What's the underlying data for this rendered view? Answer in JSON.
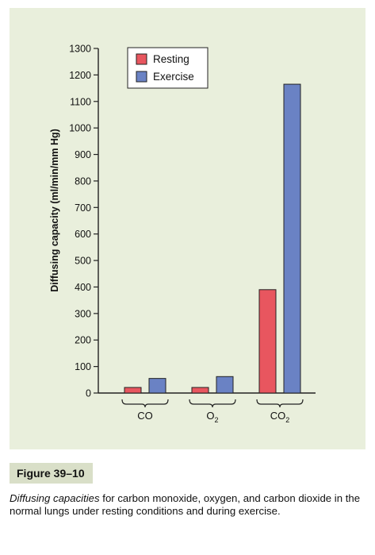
{
  "figure": {
    "label": "Figure 39–10",
    "caption_emphasis": "Diffusing capacities",
    "caption_text": " for carbon monoxide, oxygen, and carbon dioxide in the normal lungs under resting conditions and during exercise."
  },
  "chart_data": {
    "type": "bar",
    "categories": [
      "CO",
      "O2",
      "CO2"
    ],
    "category_labels": [
      {
        "base": "CO",
        "sub": ""
      },
      {
        "base": "O",
        "sub": "2"
      },
      {
        "base": "CO",
        "sub": "2"
      }
    ],
    "series": [
      {
        "name": "Resting",
        "color": "#e8565f",
        "values": [
          21,
          21,
          390
        ]
      },
      {
        "name": "Exercise",
        "color": "#6a82c4",
        "values": [
          55,
          62,
          1165
        ]
      }
    ],
    "xlabel": "",
    "ylabel": "Diffusing capacity (ml/min/mm Hg)",
    "ylim": [
      0,
      1300
    ],
    "yticks": [
      0,
      100,
      200,
      300,
      400,
      500,
      600,
      700,
      800,
      900,
      1000,
      1100,
      1200,
      1300
    ],
    "legend_position": "top-left",
    "grid": false
  }
}
